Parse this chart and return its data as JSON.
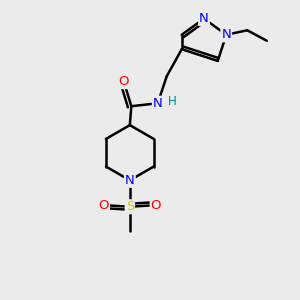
{
  "background_color": "#ebebeb",
  "bond_color": "#000000",
  "atom_colors": {
    "N": "#0000ff",
    "O": "#ff0000",
    "S": "#cccc00",
    "C": "#000000",
    "H": "#008080"
  },
  "figsize": [
    3.0,
    3.0
  ],
  "dpi": 100
}
